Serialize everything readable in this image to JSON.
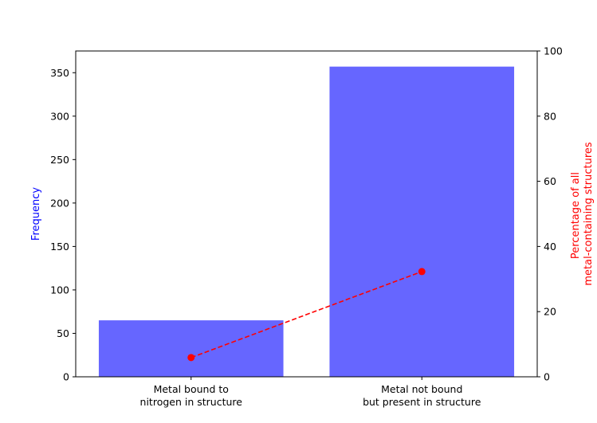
{
  "chart_data": {
    "type": "bar",
    "categories": [
      [
        "Metal bound to",
        "nitrogen in structure"
      ],
      [
        "Metal not bound",
        "but present in structure"
      ]
    ],
    "series": [
      {
        "axis": "left",
        "type": "bar",
        "values": [
          65,
          357
        ],
        "color": "#6666ff"
      },
      {
        "axis": "right",
        "type": "line",
        "values": [
          5.9,
          32.3
        ],
        "color": "#ff0000",
        "line_style": "dashed",
        "marker": "circle"
      }
    ],
    "y_left": {
      "label": "Frequency",
      "label_color": "#0000ff",
      "lim": [
        0,
        375
      ],
      "ticks": [
        "0",
        "50",
        "100",
        "150",
        "200",
        "250",
        "300",
        "350"
      ]
    },
    "y_right": {
      "label_lines": [
        "Percentage of all",
        "metal-containing structures"
      ],
      "label_color": "#ff0000",
      "lim": [
        0,
        100
      ],
      "ticks": [
        "0",
        "20",
        "40",
        "60",
        "80",
        "100"
      ]
    },
    "grid": false,
    "legend": "none"
  }
}
